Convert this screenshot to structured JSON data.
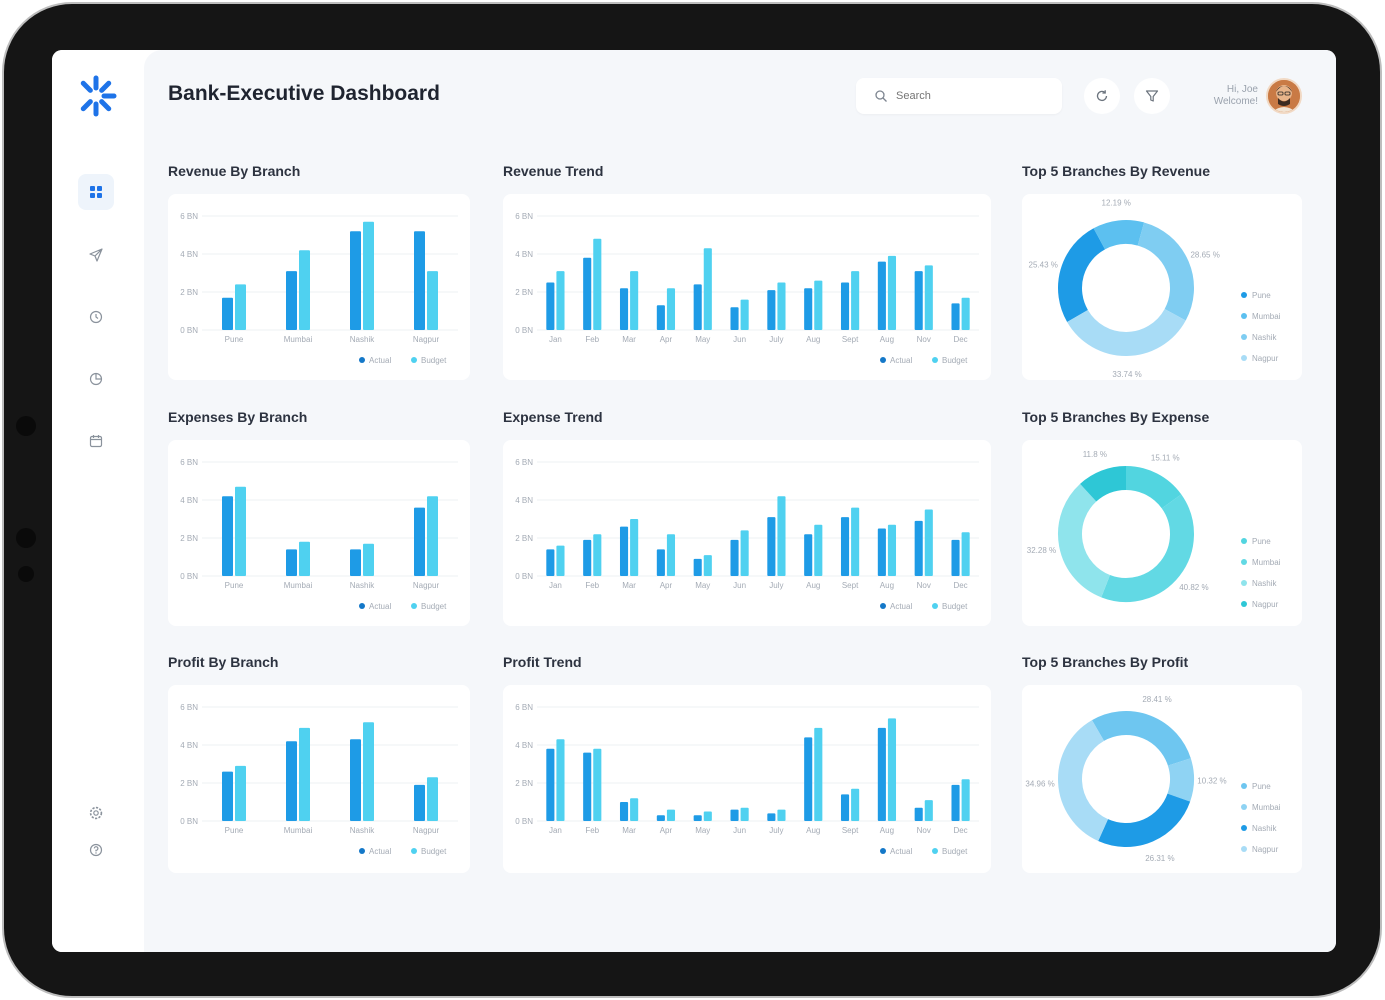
{
  "app": {
    "title": "Bank-Executive Dashboard"
  },
  "header": {
    "search_placeholder": "Search",
    "greeting_line1": "Hi, Joe",
    "greeting_line2": "Welcome!",
    "refresh_icon": "refresh-icon",
    "filter_icon": "filter-icon"
  },
  "sidebar": {
    "items": [
      {
        "icon": "dashboard-grid-icon",
        "active": true
      },
      {
        "icon": "send-icon",
        "active": false
      },
      {
        "icon": "history-icon",
        "active": false
      },
      {
        "icon": "pie-chart-icon",
        "active": false
      },
      {
        "icon": "calendar-icon",
        "active": false
      }
    ],
    "bottom_items": [
      {
        "icon": "settings-icon"
      },
      {
        "icon": "help-icon"
      }
    ]
  },
  "colors": {
    "actual": "#1e9be6",
    "budget": "#4fd1f0",
    "brand": "#1e73e8"
  },
  "sections": {
    "revenue_by_branch": "Revenue By Branch",
    "revenue_trend": "Revenue Trend",
    "top5_revenue": "Top 5 Branches By Revenue",
    "expenses_by_branch": "Expenses By Branch",
    "expense_trend": "Expense Trend",
    "top5_expense": "Top 5 Branches By Expense",
    "profit_by_branch": "Profit By Branch",
    "profit_trend": "Profit Trend",
    "top5_profit": "Top 5 Branches By Profit"
  },
  "chart_data": [
    {
      "id": "revenue_by_branch",
      "type": "bar",
      "yticks": [
        "6 BN",
        "4 BN",
        "2 BN",
        "0 BN"
      ],
      "ylim": [
        0,
        6
      ],
      "categories": [
        "Pune",
        "Mumbai",
        "Nashik",
        "Nagpur"
      ],
      "series": [
        {
          "name": "Actual",
          "values": [
            1.7,
            3.1,
            5.2,
            5.2
          ]
        },
        {
          "name": "Budget",
          "values": [
            2.4,
            4.2,
            5.7,
            3.1
          ]
        }
      ]
    },
    {
      "id": "revenue_trend",
      "type": "bar",
      "yticks": [
        "6 BN",
        "4 BN",
        "2 BN",
        "0 BN"
      ],
      "ylim": [
        0,
        6
      ],
      "categories": [
        "Jan",
        "Feb",
        "Mar",
        "Apr",
        "May",
        "Jun",
        "July",
        "Aug",
        "Sept",
        "Aug",
        "Nov",
        "Dec"
      ],
      "series": [
        {
          "name": "Actual",
          "values": [
            2.5,
            3.8,
            2.2,
            1.3,
            2.4,
            1.2,
            2.1,
            2.2,
            2.5,
            3.6,
            3.1,
            1.4
          ]
        },
        {
          "name": "Budget",
          "values": [
            3.1,
            4.8,
            3.1,
            2.2,
            4.3,
            1.6,
            2.5,
            2.6,
            3.1,
            3.9,
            3.4,
            1.7
          ]
        }
      ]
    },
    {
      "id": "top5_revenue",
      "type": "pie",
      "labels": [
        "Pune",
        "Mumbai",
        "Nashik",
        "Nagpur"
      ],
      "values": [
        25.43,
        12.19,
        28.65,
        33.74
      ],
      "value_labels": [
        "25.43 %",
        "12.19 %",
        "28.65 %",
        "33.74 %"
      ],
      "colors": [
        "#1e9be6",
        "#5cc0f0",
        "#7fcdf2",
        "#a8dcf6"
      ]
    },
    {
      "id": "expenses_by_branch",
      "type": "bar",
      "yticks": [
        "6 BN",
        "4 BN",
        "2 BN",
        "0 BN"
      ],
      "ylim": [
        0,
        6
      ],
      "categories": [
        "Pune",
        "Mumbai",
        "Nashik",
        "Nagpur"
      ],
      "series": [
        {
          "name": "Actual",
          "values": [
            4.2,
            1.4,
            1.4,
            3.6
          ]
        },
        {
          "name": "Budget",
          "values": [
            4.7,
            1.8,
            1.7,
            4.2
          ]
        }
      ]
    },
    {
      "id": "expense_trend",
      "type": "bar",
      "yticks": [
        "6 BN",
        "4 BN",
        "2 BN",
        "0 BN"
      ],
      "ylim": [
        0,
        6
      ],
      "categories": [
        "Jan",
        "Feb",
        "Mar",
        "Apr",
        "May",
        "Jun",
        "July",
        "Aug",
        "Sept",
        "Aug",
        "Nov",
        "Dec"
      ],
      "series": [
        {
          "name": "Actual",
          "values": [
            1.4,
            1.9,
            2.6,
            1.4,
            0.9,
            1.9,
            3.1,
            2.2,
            3.1,
            2.5,
            2.9,
            1.9
          ]
        },
        {
          "name": "Budget",
          "values": [
            1.6,
            2.2,
            3.0,
            2.2,
            1.1,
            2.4,
            4.2,
            2.7,
            3.6,
            2.7,
            3.5,
            2.3
          ]
        }
      ]
    },
    {
      "id": "top5_expense",
      "type": "pie",
      "labels": [
        "Pune",
        "Mumbai",
        "Nashik",
        "Nagpur"
      ],
      "values": [
        15.11,
        40.82,
        32.28,
        11.8
      ],
      "value_labels": [
        "15.11 %",
        "40.82 %",
        "32.28 %",
        "11.8 %"
      ],
      "colors": [
        "#52d5e0",
        "#62d9e4",
        "#8fe4ec",
        "#2ec7d6"
      ]
    },
    {
      "id": "profit_by_branch",
      "type": "bar",
      "yticks": [
        "6 BN",
        "4 BN",
        "2 BN",
        "0 BN"
      ],
      "ylim": [
        0,
        6
      ],
      "categories": [
        "Pune",
        "Mumbai",
        "Nashik",
        "Nagpur"
      ],
      "series": [
        {
          "name": "Actual",
          "values": [
            2.6,
            4.2,
            4.3,
            1.9
          ]
        },
        {
          "name": "Budget",
          "values": [
            2.9,
            4.9,
            5.2,
            2.3
          ]
        }
      ]
    },
    {
      "id": "profit_trend",
      "type": "bar",
      "yticks": [
        "6 BN",
        "4 BN",
        "2 BN",
        "0 BN"
      ],
      "ylim": [
        0,
        6
      ],
      "categories": [
        "Jan",
        "Feb",
        "Mar",
        "Apr",
        "May",
        "Jun",
        "July",
        "Aug",
        "Sept",
        "Aug",
        "Nov",
        "Dec"
      ],
      "series": [
        {
          "name": "Actual",
          "values": [
            3.8,
            3.6,
            1.0,
            0.3,
            0.3,
            0.6,
            0.4,
            4.4,
            1.4,
            4.9,
            0.7,
            1.9
          ]
        },
        {
          "name": "Budget",
          "values": [
            4.3,
            3.8,
            1.2,
            0.6,
            0.5,
            0.7,
            0.6,
            4.9,
            1.7,
            5.4,
            1.1,
            2.2
          ]
        }
      ]
    },
    {
      "id": "top5_profit",
      "type": "pie",
      "labels": [
        "Pune",
        "Mumbai",
        "Nashik",
        "Nagpur"
      ],
      "values": [
        28.41,
        10.32,
        26.31,
        34.96
      ],
      "value_labels": [
        "28.41 %",
        "10.32 %",
        "26.31 %",
        "34.96 %"
      ],
      "colors": [
        "#6ec6f0",
        "#8fd3f3",
        "#1e9be6",
        "#a8dcf6"
      ]
    }
  ]
}
